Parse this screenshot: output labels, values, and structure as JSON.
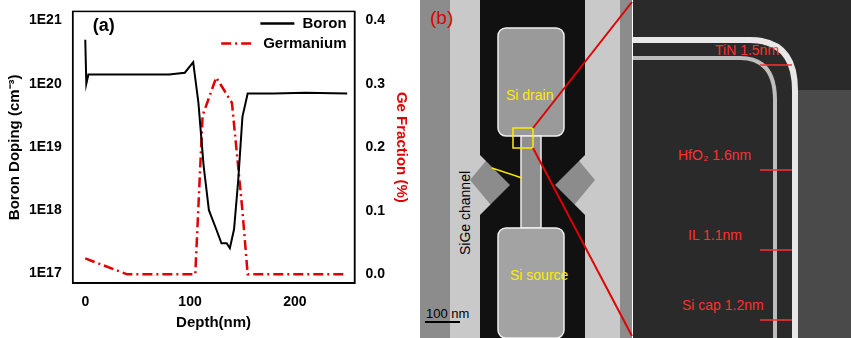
{
  "chart_data": {
    "type": "line",
    "panel_label": "(a)",
    "x_label": "Depth(nm)",
    "y_label": "Boron Doping (cm⁻³)",
    "y2_label": "Ge Fraction (%)",
    "log": "y",
    "grid": false,
    "legend": "upper right",
    "xlim": [
      -12,
      257
    ],
    "xticks": [
      0,
      100,
      200
    ],
    "ylim": [
      7e+16,
      1.4e+21
    ],
    "yticks": [
      {
        "value": 1e+17,
        "label": "1E17"
      },
      {
        "value": 1e+18,
        "label": "1E18"
      },
      {
        "value": 1e+19,
        "label": "1E19"
      },
      {
        "value": 1e+20,
        "label": "1E20"
      },
      {
        "value": 1e+21,
        "label": "1E21"
      }
    ],
    "y2lim": [
      -0.014,
      0.414
    ],
    "y2ticks": [
      {
        "value": 0,
        "label": "0.0"
      },
      0.1,
      0.2,
      0.3,
      0.4
    ],
    "series": [
      {
        "name": "Boron",
        "color": "#000000",
        "line_style": "solid",
        "axis": "y",
        "x": [
          0,
          1,
          3,
          20,
          50,
          80,
          95,
          103,
          108,
          113,
          118,
          125,
          130,
          135,
          138,
          142,
          146,
          150,
          155,
          180,
          210,
          250
        ],
        "values": [
          5e+20,
          1e+20,
          1.4e+20,
          1.4e+20,
          1.4e+20,
          1.4e+20,
          1.5e+20,
          2.2e+20,
          5e+19,
          5e+18,
          1e+18,
          5e+17,
          3e+17,
          3e+17,
          2.5e+17,
          5e+17,
          3e+18,
          3e+19,
          7e+19,
          7e+19,
          7.2e+19,
          7e+19
        ]
      },
      {
        "name": "Germanium",
        "color": "#e00000",
        "line_style": "dashdot",
        "axis": "y2",
        "x": [
          0,
          40,
          105,
          112,
          125,
          140,
          150,
          155,
          250
        ],
        "values": [
          0.025,
          0.0,
          0.0,
          0.25,
          0.31,
          0.27,
          0.1,
          0.0,
          0.0
        ]
      }
    ]
  },
  "image_panel": {
    "panel_label": "(b)",
    "drain": "Si drain",
    "channel": "SiGe channel",
    "source": "Si source",
    "scale_bar": "100 nm",
    "layers": [
      "TiN 1.5nm",
      "HfO₂ 1.6nm",
      "IL 1.1nm",
      "Si cap 1.2nm"
    ]
  }
}
